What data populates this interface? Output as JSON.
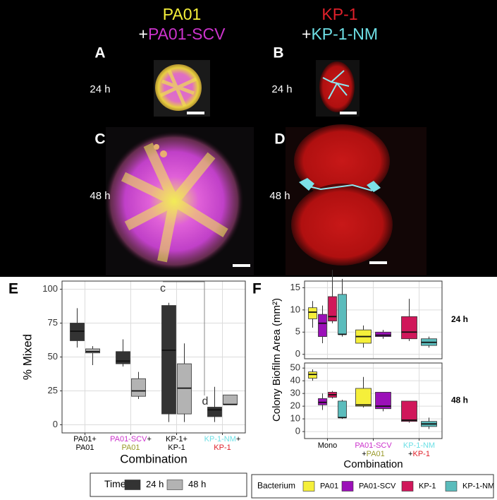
{
  "figure": {
    "headers": [
      {
        "top": "PA01",
        "plus": "+",
        "bottom": "PA01-SCV"
      },
      {
        "top": "KP-1",
        "plus": "+",
        "bottom": "KP-1-NM"
      }
    ],
    "panels": [
      {
        "label": "A",
        "time": "24 h"
      },
      {
        "label": "B",
        "time": "24 h"
      },
      {
        "label": "C",
        "time": "48 h"
      },
      {
        "label": "D",
        "time": "48 h"
      }
    ]
  },
  "chart_data": [
    {
      "type": "box",
      "panel_label": "E",
      "ylabel": "% Mixed",
      "xlabel": "Combination",
      "ylim": [
        -6,
        106
      ],
      "yticks": [
        0,
        25,
        50,
        75,
        100
      ],
      "grid": true,
      "categories": [
        [
          [
            {
              "text": "PA01+",
              "color": "#000000"
            }
          ],
          [
            {
              "text": "PA01",
              "color": "#000000"
            }
          ]
        ],
        [
          [
            {
              "text": "PA01-SCV",
              "color": "#cc33cc"
            },
            {
              "text": "+",
              "color": "#000000"
            }
          ],
          [
            {
              "text": "PA01",
              "color": "#9a9a2a"
            }
          ]
        ],
        [
          [
            {
              "text": "KP-1+",
              "color": "#000000"
            }
          ],
          [
            {
              "text": "KP-1",
              "color": "#000000"
            }
          ]
        ],
        [
          [
            {
              "text": "KP-1-NM",
              "color": "#6ee0e6"
            },
            {
              "text": "+",
              "color": "#000000"
            }
          ],
          [
            {
              "text": "KP-1",
              "color": "#e0202a"
            }
          ]
        ]
      ],
      "legend_title": "Time",
      "series": [
        {
          "name": "24 h",
          "color": "#333333",
          "values": [
            {
              "min": 57,
              "q1": 62,
              "median": 69,
              "q3": 75,
              "max": 86
            },
            {
              "min": 43,
              "q1": 45,
              "median": 47,
              "q3": 54,
              "max": 63
            },
            {
              "min": 2,
              "q1": 8,
              "median": 55,
              "q3": 88,
              "max": 90
            },
            {
              "min": 2,
              "q1": 6,
              "median": 11,
              "q3": 13,
              "max": 28
            }
          ]
        },
        {
          "name": "48 h",
          "color": "#b3b3b3",
          "values": [
            {
              "min": 44,
              "q1": 53,
              "median": 54,
              "q3": 56,
              "max": 58
            },
            {
              "min": 19,
              "q1": 21,
              "median": 25,
              "q3": 34,
              "max": 39
            },
            {
              "min": 2,
              "q1": 8,
              "median": 27,
              "q3": 45,
              "max": 60
            },
            {
              "min": 15,
              "q1": 15,
              "median": 15,
              "q3": 22,
              "max": 22
            }
          ]
        }
      ],
      "annotations": [
        "c",
        "d"
      ]
    },
    {
      "type": "box",
      "panel_label": "F",
      "ylabel": "Colony Biofilm Area (mm²)",
      "xlabel": "Combination",
      "grid": true,
      "categories": [
        [
          [
            {
              "text": "Mono",
              "color": "#000000"
            }
          ]
        ],
        [
          [
            {
              "text": "PA01-SCV",
              "color": "#cc33cc"
            }
          ],
          [
            {
              "text": "+",
              "color": "#000000"
            },
            {
              "text": "PA01",
              "color": "#9a9a2a"
            }
          ]
        ],
        [
          [
            {
              "text": "KP-1-NM",
              "color": "#6ee0e6"
            }
          ],
          [
            {
              "text": "+",
              "color": "#000000"
            },
            {
              "text": "KP-1",
              "color": "#e0202a"
            }
          ]
        ]
      ],
      "legend_title": "Bacterium",
      "series": [
        {
          "name": "PA01",
          "color": "#f5ef3a"
        },
        {
          "name": "PA01-SCV",
          "color": "#9b10b8"
        },
        {
          "name": "KP-1",
          "color": "#d0175a"
        },
        {
          "name": "KP-1-NM",
          "color": "#5bbcbc"
        }
      ],
      "facets": [
        {
          "label": "24 h",
          "ylim": [
            -1,
            16.5
          ],
          "yticks": [
            0,
            5,
            10,
            15
          ],
          "series": [
            {
              "values": [
                {
                  "min": 6,
                  "q1": 8,
                  "median": 9.5,
                  "q3": 10.5,
                  "max": 12
                },
                {
                  "min": 1.5,
                  "q1": 2.5,
                  "median": 4,
                  "q3": 5.5,
                  "max": 6.5
                },
                null
              ]
            },
            {
              "values": [
                {
                  "min": 2.5,
                  "q1": 4,
                  "median": 7,
                  "q3": 9,
                  "max": 11
                },
                {
                  "min": 3.5,
                  "q1": 4,
                  "median": 4.3,
                  "q3": 5,
                  "max": 5.5
                },
                null
              ]
            },
            {
              "values": [
                {
                  "min": 7,
                  "q1": 7.5,
                  "median": 8.5,
                  "q3": 13,
                  "max": 19
                },
                null,
                {
                  "min": 3,
                  "q1": 3.5,
                  "median": 5,
                  "q3": 8.5,
                  "max": 12.5
                }
              ]
            },
            {
              "values": [
                {
                  "min": 4,
                  "q1": 4.5,
                  "median": 4.5,
                  "q3": 13.5,
                  "max": 17
                },
                null,
                {
                  "min": 1.5,
                  "q1": 2,
                  "median": 2.7,
                  "q3": 3.5,
                  "max": 4
                }
              ]
            }
          ]
        },
        {
          "label": "48 h",
          "ylim": [
            -5.5,
            54
          ],
          "yticks": [
            0,
            10,
            20,
            30,
            40,
            50
          ],
          "series": [
            {
              "values": [
                {
                  "min": 40,
                  "q1": 42,
                  "median": 45,
                  "q3": 47,
                  "max": 49
                },
                {
                  "min": 19,
                  "q1": 20,
                  "median": 21,
                  "q3": 34,
                  "max": 43
                },
                null
              ]
            },
            {
              "values": [
                {
                  "min": 17,
                  "q1": 21,
                  "median": 23,
                  "q3": 26,
                  "max": 30
                },
                {
                  "min": 16,
                  "q1": 18,
                  "median": 20,
                  "q3": 31,
                  "max": 31
                },
                null
              ]
            },
            {
              "values": [
                {
                  "min": 26,
                  "q1": 27,
                  "median": 29,
                  "q3": 31,
                  "max": 32
                },
                null,
                {
                  "min": 7,
                  "q1": 8,
                  "median": 9,
                  "q3": 24,
                  "max": 24
                }
              ]
            },
            {
              "values": [
                {
                  "min": 10,
                  "q1": 11,
                  "median": 11,
                  "q3": 24,
                  "max": 25
                },
                null,
                {
                  "min": 2,
                  "q1": 4,
                  "median": 6,
                  "q3": 8,
                  "max": 11
                }
              ]
            }
          ]
        }
      ]
    }
  ]
}
